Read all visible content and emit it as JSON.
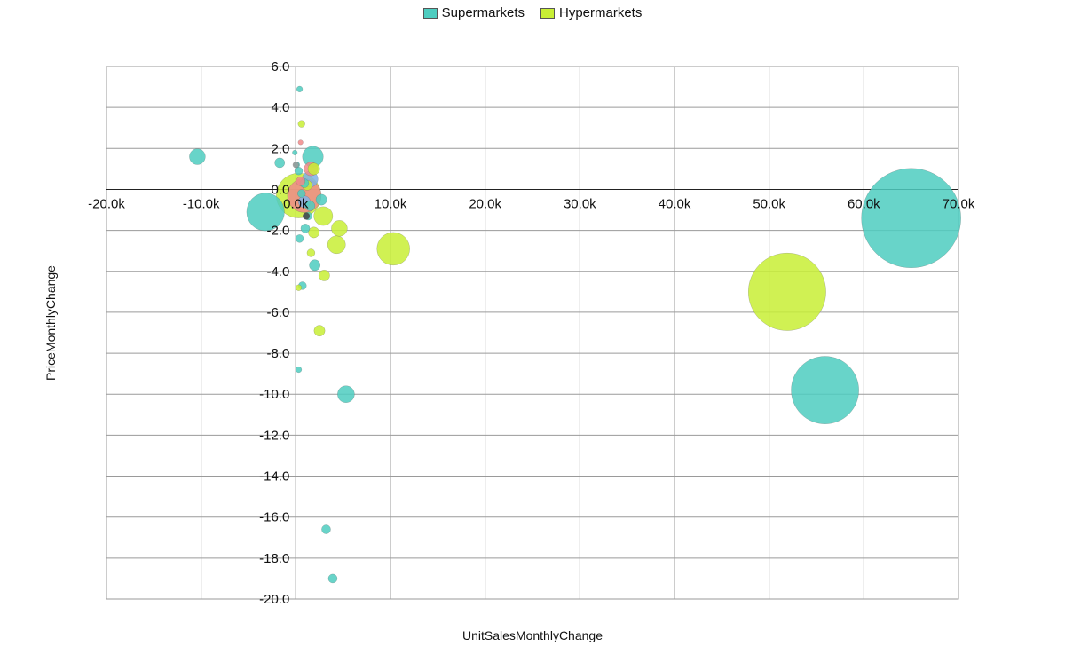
{
  "chart_data": {
    "type": "scatter",
    "xlabel": "UnitSalesMonthlyChange",
    "ylabel": "PriceMonthlyChange",
    "xlim": [
      -20000,
      70000
    ],
    "ylim": [
      -20,
      6
    ],
    "x_ticks": [
      {
        "value": -20000,
        "label": "-20.0k"
      },
      {
        "value": -10000,
        "label": "-10.0k"
      },
      {
        "value": 0,
        "label": "0.0k"
      },
      {
        "value": 10000,
        "label": "10.0k"
      },
      {
        "value": 20000,
        "label": "20.0k"
      },
      {
        "value": 30000,
        "label": "30.0k"
      },
      {
        "value": 40000,
        "label": "40.0k"
      },
      {
        "value": 50000,
        "label": "50.0k"
      },
      {
        "value": 60000,
        "label": "60.0k"
      },
      {
        "value": 70000,
        "label": "70.0k"
      }
    ],
    "y_ticks": [
      {
        "value": 6,
        "label": "6.0"
      },
      {
        "value": 4,
        "label": "4.0"
      },
      {
        "value": 2,
        "label": "2.0"
      },
      {
        "value": 0,
        "label": "0.0"
      },
      {
        "value": -2,
        "label": "-2.0"
      },
      {
        "value": -4,
        "label": "-4.0"
      },
      {
        "value": -6,
        "label": "-6.0"
      },
      {
        "value": -8,
        "label": "-8.0"
      },
      {
        "value": -10,
        "label": "-10.0"
      },
      {
        "value": -12,
        "label": "-12.0"
      },
      {
        "value": -14,
        "label": "-14.0"
      },
      {
        "value": -16,
        "label": "-16.0"
      },
      {
        "value": -18,
        "label": "-18.0"
      },
      {
        "value": -20,
        "label": "-20.0"
      }
    ],
    "grid": true,
    "legend_position": "top-center",
    "series": [
      {
        "name": "Supermarkets",
        "color": "#4ecdc0",
        "points": [
          {
            "x": 65000,
            "y": -1.4,
            "size": 100
          },
          {
            "x": 55900,
            "y": -9.8,
            "size": 68
          },
          {
            "x": -3200,
            "y": -1.1,
            "size": 38
          },
          {
            "x": -10400,
            "y": 1.6,
            "size": 16
          },
          {
            "x": 1800,
            "y": 1.6,
            "size": 21
          },
          {
            "x": 5300,
            "y": -10.0,
            "size": 17
          },
          {
            "x": 3200,
            "y": -16.6,
            "size": 9
          },
          {
            "x": 3900,
            "y": -19.0,
            "size": 9
          },
          {
            "x": 2000,
            "y": -3.7,
            "size": 11
          },
          {
            "x": 400,
            "y": -2.4,
            "size": 8
          },
          {
            "x": 2700,
            "y": -0.5,
            "size": 11
          },
          {
            "x": 1000,
            "y": -1.9,
            "size": 9
          },
          {
            "x": -1700,
            "y": 1.3,
            "size": 10
          },
          {
            "x": 400,
            "y": 4.9,
            "size": 6
          },
          {
            "x": 300,
            "y": -8.8,
            "size": 6
          },
          {
            "x": 700,
            "y": -4.7,
            "size": 8
          },
          {
            "x": 900,
            "y": 0.3,
            "size": 9
          },
          {
            "x": 1300,
            "y": -1.3,
            "size": 8
          },
          {
            "x": 100,
            "y": 1.2,
            "size": 6
          },
          {
            "x": 300,
            "y": 0.9,
            "size": 8
          },
          {
            "x": 1500,
            "y": -0.8,
            "size": 10
          },
          {
            "x": -100,
            "y": 1.8,
            "size": 5
          },
          {
            "x": 600,
            "y": -0.2,
            "size": 8
          }
        ]
      },
      {
        "name": "Hypermarkets",
        "color": "#c8ef35",
        "points": [
          {
            "x": 51900,
            "y": -5.0,
            "size": 78
          },
          {
            "x": 10300,
            "y": -2.9,
            "size": 33
          },
          {
            "x": 300,
            "y": -0.3,
            "size": 45
          },
          {
            "x": 2900,
            "y": -1.3,
            "size": 19
          },
          {
            "x": 4600,
            "y": -1.9,
            "size": 16
          },
          {
            "x": 4300,
            "y": -2.7,
            "size": 18
          },
          {
            "x": 1900,
            "y": -2.1,
            "size": 11
          },
          {
            "x": 3000,
            "y": -4.2,
            "size": 11
          },
          {
            "x": 2500,
            "y": -6.9,
            "size": 11
          },
          {
            "x": 1600,
            "y": -3.1,
            "size": 8
          },
          {
            "x": 1900,
            "y": 1.0,
            "size": 12
          },
          {
            "x": 600,
            "y": 3.2,
            "size": 7
          },
          {
            "x": 300,
            "y": -4.8,
            "size": 6
          },
          {
            "x": 1200,
            "y": 0.2,
            "size": 10
          }
        ]
      }
    ],
    "unlabeled_points": [
      {
        "x": 900,
        "y": -0.3,
        "size": 34,
        "color": "#f08a8a"
      },
      {
        "x": 1600,
        "y": 1.0,
        "size": 14,
        "color": "#f08a8a"
      },
      {
        "x": 1500,
        "y": 0.5,
        "size": 16,
        "color": "#7fb2e8"
      },
      {
        "x": 900,
        "y": -0.6,
        "size": 12,
        "color": "#7fb2e8"
      },
      {
        "x": 500,
        "y": 0.4,
        "size": 9,
        "color": "#f08a8a"
      },
      {
        "x": 1100,
        "y": -1.3,
        "size": 7,
        "color": "#444444"
      },
      {
        "x": 0,
        "y": 1.2,
        "size": 6,
        "color": "#999999"
      },
      {
        "x": 500,
        "y": 2.3,
        "size": 5,
        "color": "#f08a8a"
      }
    ]
  }
}
